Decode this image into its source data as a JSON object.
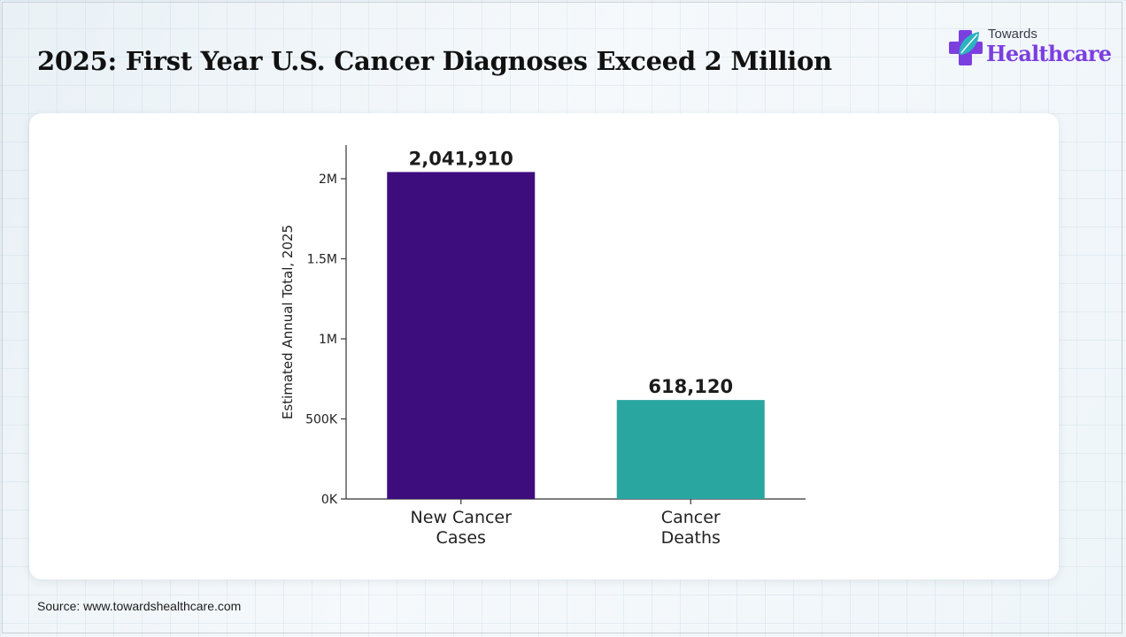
{
  "page": {
    "title": "2025: First Year U.S. Cancer Diagnoses Exceed 2 Million",
    "source": "Source: www.towardshealthcare.com"
  },
  "logo": {
    "line1": "Towards",
    "line2": "Healthcare",
    "icon": "medical-cross-leaf-icon",
    "colors": {
      "primary": "#7b3fe0",
      "leaf": "#2bb3c0"
    }
  },
  "chart_data": {
    "type": "bar",
    "categories": [
      [
        "New Cancer",
        "Cases"
      ],
      [
        "Cancer",
        "Deaths"
      ]
    ],
    "values": [
      2041910,
      618120
    ],
    "data_labels": [
      "2,041,910",
      "618,120"
    ],
    "colors": [
      "#3d0d7e",
      "#2aa6a0"
    ],
    "ylabel": "Estimated Annual Total, 2025",
    "xlabel": "",
    "ylim": [
      0,
      2210000
    ],
    "yticks": [
      0,
      500000,
      1000000,
      1500000,
      2000000
    ],
    "ytick_labels": [
      "0K",
      "500K",
      "1M",
      "1.5M",
      "2M"
    ],
    "grid": false,
    "legend": false
  }
}
